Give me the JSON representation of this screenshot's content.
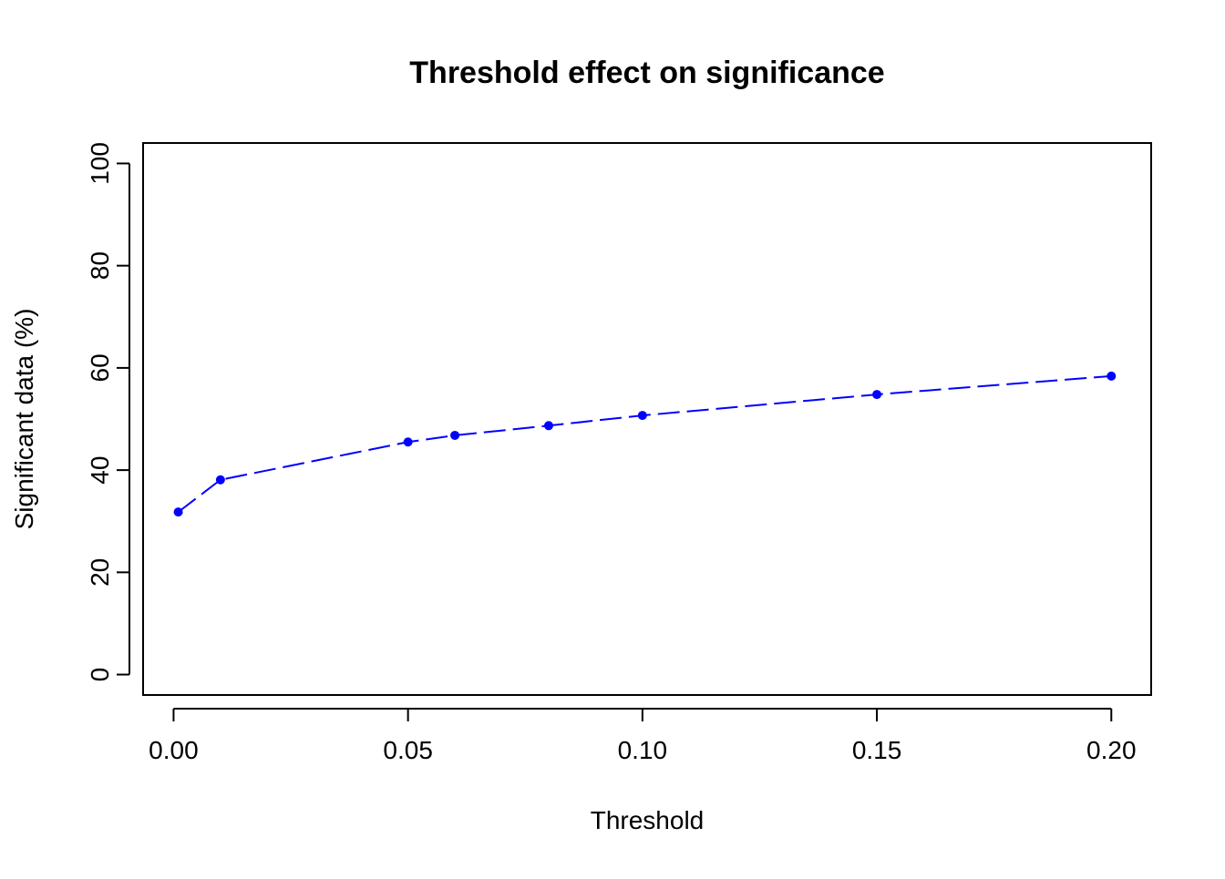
{
  "chart_data": {
    "type": "line",
    "title": "Threshold effect on significance",
    "xlabel": "Threshold",
    "ylabel": "Significant data (%)",
    "x": [
      0.001,
      0.01,
      0.05,
      0.06,
      0.08,
      0.1,
      0.15,
      0.2
    ],
    "series": [
      {
        "values": [
          31.8,
          38.1,
          45.5,
          46.8,
          48.7,
          50.7,
          54.8,
          58.4
        ],
        "color": "#0000ff",
        "line_style": "dashed",
        "marker": "filled-circle"
      }
    ],
    "xlim": [
      -0.0065,
      0.2085
    ],
    "ylim": [
      -4,
      104
    ],
    "x_ticks": [
      0.0,
      0.05,
      0.1,
      0.15,
      0.2
    ],
    "x_tick_labels": [
      "0.00",
      "0.05",
      "0.10",
      "0.15",
      "0.20"
    ],
    "y_ticks": [
      0,
      20,
      40,
      60,
      80,
      100
    ],
    "y_tick_labels": [
      "0",
      "20",
      "40",
      "60",
      "80",
      "100"
    ],
    "grid": false,
    "legend": "none"
  }
}
